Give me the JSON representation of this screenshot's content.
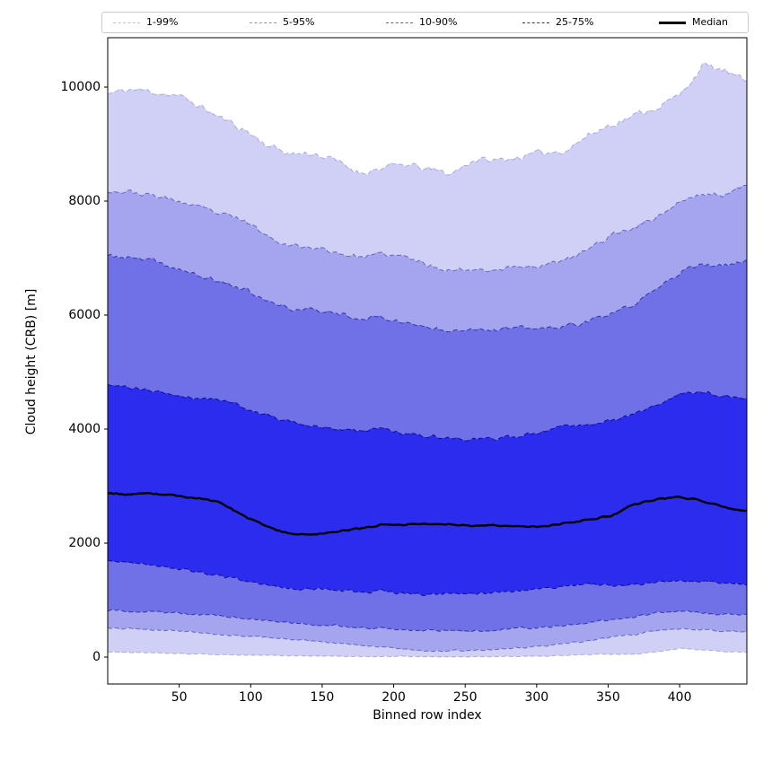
{
  "chart_data": {
    "type": "area",
    "title": "",
    "xlabel": "Binned row index",
    "ylabel": "Cloud height (CRB) [m]",
    "xlim": [
      0,
      447
    ],
    "ylim": [
      -472,
      10866
    ],
    "xticks": [
      50,
      100,
      150,
      200,
      250,
      300,
      350,
      400
    ],
    "yticks": [
      0,
      2000,
      4000,
      6000,
      8000,
      10000
    ],
    "grid": false,
    "legend_position": "top-horizontal-outside",
    "control_x": [
      0,
      16,
      32,
      48,
      64,
      80,
      96,
      112,
      128,
      144,
      160,
      176,
      192,
      208,
      224,
      240,
      256,
      272,
      288,
      304,
      320,
      336,
      352,
      368,
      384,
      400,
      416,
      432,
      447
    ],
    "series": {
      "p99": [
        9880,
        9960,
        9920,
        9860,
        9670,
        9450,
        9250,
        8980,
        8830,
        8840,
        8700,
        8500,
        8580,
        8640,
        8560,
        8480,
        8730,
        8710,
        8780,
        8840,
        8900,
        9150,
        9350,
        9500,
        9650,
        9850,
        10380,
        10280,
        10080
      ],
      "p95": [
        8190,
        8160,
        8090,
        8010,
        7880,
        7760,
        7650,
        7380,
        7230,
        7180,
        7100,
        7020,
        7060,
        7020,
        6880,
        6790,
        6810,
        6800,
        6850,
        6880,
        6950,
        7150,
        7400,
        7550,
        7720,
        7990,
        8120,
        8110,
        8280
      ],
      "p90": [
        7040,
        7000,
        6940,
        6820,
        6680,
        6580,
        6450,
        6230,
        6110,
        6085,
        6050,
        5950,
        5960,
        5870,
        5780,
        5750,
        5770,
        5750,
        5770,
        5760,
        5800,
        5880,
        6020,
        6180,
        6450,
        6760,
        6870,
        6860,
        6950
      ],
      "p75": [
        4760,
        4720,
        4670,
        4610,
        4540,
        4520,
        4390,
        4240,
        4110,
        4050,
        4000,
        3960,
        4030,
        3910,
        3870,
        3840,
        3815,
        3830,
        3860,
        3980,
        4050,
        4100,
        4150,
        4260,
        4420,
        4600,
        4640,
        4590,
        4520
      ],
      "median": [
        2880,
        2850,
        2865,
        2830,
        2790,
        2700,
        2460,
        2280,
        2160,
        2160,
        2200,
        2250,
        2330,
        2330,
        2340,
        2330,
        2310,
        2310,
        2305,
        2280,
        2350,
        2410,
        2480,
        2680,
        2770,
        2820,
        2740,
        2630,
        2550
      ],
      "p25": [
        1680,
        1660,
        1620,
        1560,
        1490,
        1400,
        1350,
        1245,
        1205,
        1195,
        1180,
        1145,
        1165,
        1115,
        1100,
        1120,
        1125,
        1130,
        1170,
        1215,
        1250,
        1275,
        1265,
        1255,
        1305,
        1330,
        1335,
        1305,
        1290
      ],
      "p10": [
        820,
        810,
        795,
        770,
        745,
        715,
        690,
        640,
        605,
        575,
        555,
        525,
        500,
        470,
        468,
        460,
        462,
        480,
        500,
        525,
        560,
        595,
        650,
        715,
        770,
        800,
        775,
        750,
        740
      ],
      "p05": [
        505,
        495,
        480,
        460,
        435,
        400,
        375,
        345,
        310,
        275,
        250,
        210,
        170,
        140,
        112,
        115,
        120,
        140,
        165,
        195,
        240,
        285,
        340,
        400,
        460,
        500,
        480,
        455,
        455
      ],
      "p01": [
        90,
        82,
        72,
        62,
        52,
        42,
        35,
        28,
        22,
        16,
        12,
        10,
        10,
        8,
        5,
        5,
        6,
        8,
        12,
        18,
        30,
        42,
        50,
        45,
        90,
        150,
        125,
        95,
        80
      ]
    },
    "bands": [
      {
        "label": "1-99%",
        "lower": "p01",
        "upper": "p99",
        "fill": "#d0d0f6",
        "edge_color": "#000080",
        "edge_alpha": 0.25
      },
      {
        "label": "5-95%",
        "lower": "p05",
        "upper": "p95",
        "fill": "#a5a5ef",
        "edge_color": "#000080",
        "edge_alpha": 0.45
      },
      {
        "label": "10-90%",
        "lower": "p10",
        "upper": "p90",
        "fill": "#7171e7",
        "edge_color": "#000080",
        "edge_alpha": 0.62
      },
      {
        "label": "25-75%",
        "lower": "p25",
        "upper": "p75",
        "fill": "#2c2cee",
        "edge_color": "#000080",
        "edge_alpha": 0.82
      }
    ],
    "median_line": {
      "label": "Median",
      "color": "#000000"
    },
    "legend": {
      "items": [
        {
          "label": "1-99%",
          "line_color": "rgba(0,0,128,0.25)",
          "line_style": "dashed",
          "line_width": 1.4
        },
        {
          "label": "5-95%",
          "line_color": "rgba(0,0,128,0.45)",
          "line_style": "dashed",
          "line_width": 1.4
        },
        {
          "label": "10-90%",
          "line_color": "rgba(0,0,128,0.62)",
          "line_style": "dashed",
          "line_width": 1.6
        },
        {
          "label": "25-75%",
          "line_color": "rgba(0,0,128,0.82)",
          "line_style": "dashed",
          "line_width": 1.8
        },
        {
          "label": "Median",
          "line_color": "#000000",
          "line_style": "solid",
          "line_width": 3
        }
      ]
    },
    "axis_color": "#000000"
  }
}
